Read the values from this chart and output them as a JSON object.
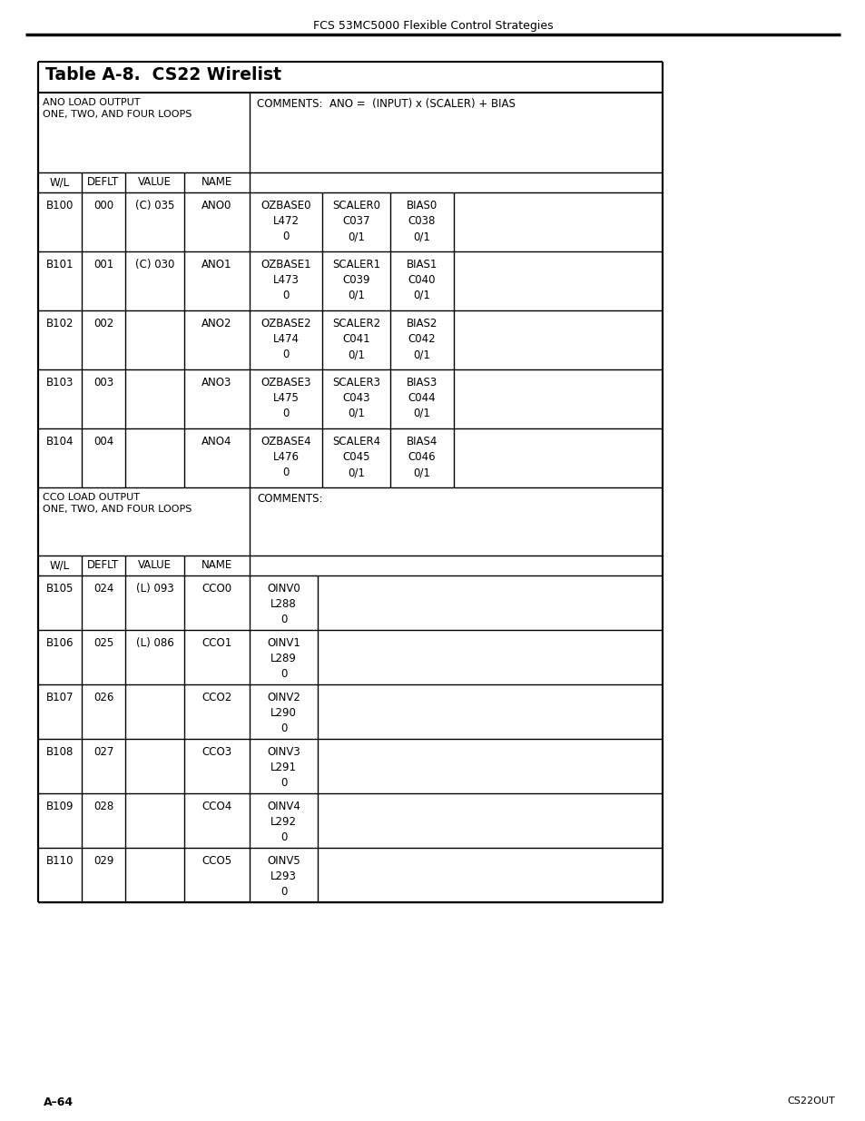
{
  "page_header": "FCS 53MC5000 Flexible Control Strategies",
  "page_footer_left": "A–64",
  "page_footer_right": "CS22OUT",
  "table_title": "Table A-8.  CS22 Wirelist",
  "section1_label": "ANO LOAD OUTPUT\nONE, TWO, AND FOUR LOOPS",
  "section1_comment": "COMMENTS:  ANO =  (INPUT) x (SCALER) + BIAS",
  "section1_headers": [
    "W/L",
    "DEFLT",
    "VALUE",
    "NAME"
  ],
  "section1_rows": [
    [
      "B100",
      "000",
      "(C) 035",
      "ANO0",
      "OZBASE0\nL472\n0",
      "SCALER0\nC037\n0/1",
      "BIAS0\nC038\n0/1"
    ],
    [
      "B101",
      "001",
      "(C) 030",
      "ANO1",
      "OZBASE1\nL473\n0",
      "SCALER1\nC039\n0/1",
      "BIAS1\nC040\n0/1"
    ],
    [
      "B102",
      "002",
      "",
      "ANO2",
      "OZBASE2\nL474\n0",
      "SCALER2\nC041\n0/1",
      "BIAS2\nC042\n0/1"
    ],
    [
      "B103",
      "003",
      "",
      "ANO3",
      "OZBASE3\nL475\n0",
      "SCALER3\nC043\n0/1",
      "BIAS3\nC044\n0/1"
    ],
    [
      "B104",
      "004",
      "",
      "ANO4",
      "OZBASE4\nL476\n0",
      "SCALER4\nC045\n0/1",
      "BIAS4\nC046\n0/1"
    ]
  ],
  "section2_label": "CCO LOAD OUTPUT\nONE, TWO, AND FOUR LOOPS",
  "section2_comment": "COMMENTS:",
  "section2_headers": [
    "W/L",
    "DEFLT",
    "VALUE",
    "NAME"
  ],
  "section2_rows": [
    [
      "B105",
      "024",
      "(L) 093",
      "CCO0",
      "OINV0\nL288\n0"
    ],
    [
      "B106",
      "025",
      "(L) 086",
      "CCO1",
      "OINV1\nL289\n0"
    ],
    [
      "B107",
      "026",
      "",
      "CCO2",
      "OINV2\nL290\n0"
    ],
    [
      "B108",
      "027",
      "",
      "CCO3",
      "OINV3\nL291\n0"
    ],
    [
      "B109",
      "028",
      "",
      "CCO4",
      "OINV4\nL292\n0"
    ],
    [
      "B110",
      "029",
      "",
      "CCO5",
      "OINV5\nL293\n0"
    ]
  ],
  "bg_color": "#ffffff"
}
